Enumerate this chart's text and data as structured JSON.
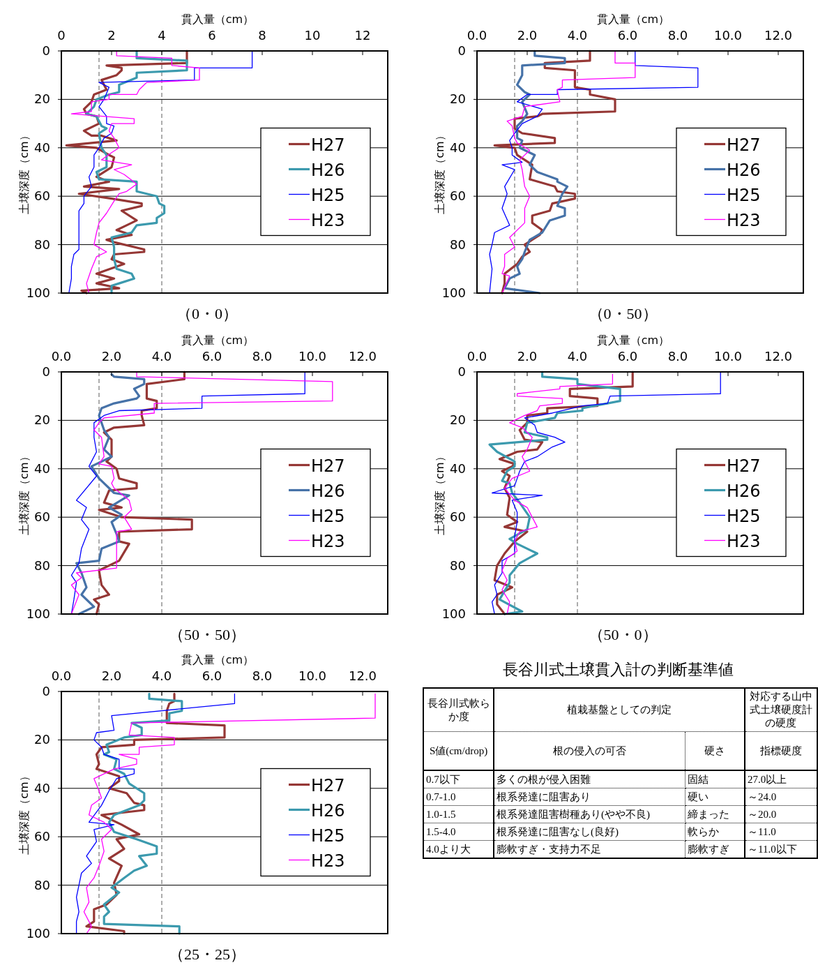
{
  "chart_data": [
    {
      "type": "line",
      "title": "（0・0）",
      "xlabel": "貫入量（cm）",
      "ylabel": "土壌深度（cm）",
      "xlim": [
        0,
        13
      ],
      "xticks": [
        0,
        2,
        4,
        6,
        8,
        10,
        12
      ],
      "ylim": [
        100,
        0
      ],
      "yticks": [
        0,
        20,
        40,
        60,
        80,
        100
      ],
      "grid": "y",
      "legend": "right",
      "ref_lines": [
        {
          "axis": "x",
          "value": 1.5,
          "color": "#808080",
          "line_style": "dashed"
        },
        {
          "axis": "x",
          "value": 4.0,
          "color": "#808080",
          "line_style": "dashed"
        }
      ],
      "series": [
        {
          "name": "H27",
          "color": "#953735",
          "x": [
            5.0,
            5.0,
            1.8,
            2.4,
            2.4,
            2.2,
            1.6,
            1.8,
            1.3,
            1.2,
            0.9,
            1.0,
            1.4,
            1.5,
            0.9,
            1.2,
            1.6,
            2.2,
            0.2,
            1.4,
            1.9,
            2.1,
            2.0,
            1.4,
            1.9,
            0.9,
            2.3,
            0.7,
            2.0,
            3.2,
            3.2,
            2.4,
            3.0,
            2.6,
            2.2,
            2.8,
            1.8,
            2.1,
            3.3,
            3.3,
            2.1,
            2.0,
            2.5,
            1.4,
            2.1,
            1.4,
            2.3,
            0.8,
            1.0
          ],
          "values": [
            0,
            5,
            6,
            7,
            8,
            10,
            12,
            16,
            18,
            21,
            24,
            26,
            27,
            30,
            33,
            35,
            35,
            37,
            39,
            40,
            43,
            44,
            48,
            52,
            54,
            56,
            57,
            59,
            61,
            63,
            64,
            66,
            70,
            72,
            74,
            76,
            78,
            79,
            82,
            83,
            84,
            86,
            88,
            92,
            94,
            96,
            98,
            99,
            100
          ]
        },
        {
          "name": "H26",
          "color": "#3c9aae",
          "x": [
            3.0,
            3.0,
            5.0,
            5.0,
            3.0,
            3.0,
            2.3,
            2.3,
            1.9,
            1.4,
            1.3,
            1.0,
            1.4,
            1.6,
            1.8,
            1.5,
            1.6,
            1.8,
            1.8,
            1.4,
            1.5,
            3.0,
            3.0,
            3.8,
            3.9,
            4.1,
            4.1,
            3.8,
            3.8,
            3.0,
            2.8,
            2.0,
            2.1,
            2.1,
            2.2,
            2.8,
            2.9,
            2.3,
            2.0,
            2.0
          ],
          "values": [
            0,
            3,
            4,
            8,
            9,
            11,
            14,
            17,
            18,
            20,
            23,
            26,
            27,
            31,
            32,
            34,
            40,
            43,
            48,
            50,
            53,
            54,
            58,
            60,
            63,
            64,
            67,
            69,
            71,
            72,
            75,
            77,
            81,
            86,
            90,
            92,
            94,
            96,
            97,
            100
          ]
        },
        {
          "name": "H25",
          "color": "#0000ff",
          "x": [
            7.6,
            7.6,
            5.3,
            5.3,
            1.5,
            1.9,
            1.7,
            1.5,
            1.8,
            1.8,
            2.1,
            2.0,
            1.7,
            1.5,
            1.3,
            1.3,
            1.1,
            1.2,
            0.9,
            0.9,
            0.7,
            0.7,
            0.7,
            0.7,
            0.5,
            0.4,
            0.4,
            0.3
          ],
          "values": [
            0,
            7,
            7,
            12,
            13,
            15,
            20,
            23,
            27,
            30,
            31,
            34,
            36,
            40,
            43,
            48,
            52,
            56,
            60,
            63,
            66,
            71,
            77,
            82,
            84,
            89,
            94,
            100
          ]
        },
        {
          "name": "H23",
          "color": "#ff00ff",
          "x": [
            2.2,
            2.2,
            4.4,
            4.4,
            5.5,
            5.5,
            3.4,
            3.3,
            3.1,
            3.0,
            1.9,
            1.9,
            1.2,
            1.2,
            0.4,
            2.9,
            2.9,
            2.0,
            1.9,
            2.1,
            2.3,
            2.0,
            1.6,
            2.8,
            2.1,
            2.5,
            3.0,
            2.6,
            2.3,
            2.1,
            1.8,
            1.5,
            1.4,
            1.3,
            1.8,
            1.4,
            1.2,
            1.1,
            1.0,
            1.1
          ],
          "values": [
            0,
            2,
            3,
            6,
            7,
            12,
            13,
            14,
            16,
            18,
            18,
            20,
            21,
            25,
            26,
            28,
            30,
            30,
            33,
            36,
            40,
            42,
            45,
            47,
            49,
            51,
            55,
            58,
            59,
            62,
            67,
            71,
            75,
            80,
            83,
            85,
            90,
            93,
            96,
            100
          ]
        }
      ]
    },
    {
      "type": "line",
      "title": "（0・50）",
      "xlabel": "貫入量（cm）",
      "ylabel": "土壌深度（cm）",
      "xlim": [
        0,
        13
      ],
      "xticks": [
        {
          "value": 0,
          "label": "0.0"
        },
        {
          "value": 2,
          "label": "2.0"
        },
        {
          "value": 4,
          "label": "4.0"
        },
        {
          "value": 6,
          "label": "6.0"
        },
        {
          "value": 8,
          "label": "8.0"
        },
        {
          "value": 10,
          "label": "10.0"
        },
        {
          "value": 12,
          "label": "12.0"
        }
      ],
      "ylim": [
        100,
        0
      ],
      "yticks": [
        0,
        20,
        40,
        60,
        80,
        100
      ],
      "grid": "y",
      "legend": "right",
      "ref_lines": [
        {
          "axis": "x",
          "value": 1.5,
          "color": "#808080",
          "line_style": "dashed"
        },
        {
          "axis": "x",
          "value": 4.0,
          "color": "#808080",
          "line_style": "dashed"
        }
      ],
      "series": [
        {
          "name": "H27",
          "color": "#953735",
          "x": [
            4.5,
            4.5,
            2.7,
            2.7,
            3.9,
            3.9,
            4.5,
            4.5,
            5.5,
            5.5,
            2.6,
            2.4,
            1.5,
            1.5,
            1.8,
            3.1,
            3.1,
            0.7,
            1.5,
            1.6,
            1.9,
            2.2,
            2.1,
            3.1,
            3.2,
            3.9,
            3.9,
            3.0,
            2.9,
            2.2,
            2.2,
            2.6,
            2.5,
            1.9,
            2.1,
            1.8,
            1.6,
            1.1,
            1.1,
            1.0
          ],
          "values": [
            0,
            4,
            5,
            7,
            8,
            15,
            16,
            18,
            20,
            25,
            26,
            27,
            28,
            32,
            34,
            36,
            38,
            39,
            40,
            43,
            45,
            47,
            53,
            56,
            58,
            59,
            61,
            63,
            66,
            68,
            71,
            74,
            76,
            80,
            83,
            85,
            88,
            92,
            96,
            100
          ]
        },
        {
          "name": "H26",
          "color": "#4672a8",
          "x": [
            2.3,
            2.3,
            3.5,
            3.5,
            1.8,
            1.8,
            1.6,
            1.9,
            2.1,
            1.8,
            2.0,
            1.8,
            1.6,
            1.6,
            1.8,
            1.7,
            2.3,
            2.1,
            2.4,
            3.2,
            3.2,
            3.6,
            3.4,
            3.2,
            3.5,
            3.5,
            2.9,
            2.6,
            2.1,
            1.9,
            1.8,
            1.6,
            1.7,
            1.3,
            1.1,
            2.5
          ],
          "values": [
            0,
            2,
            3,
            5,
            6,
            10,
            14,
            17,
            18,
            21,
            26,
            29,
            31,
            36,
            37,
            40,
            43,
            47,
            50,
            53,
            54,
            56,
            59,
            64,
            65,
            68,
            70,
            75,
            78,
            83,
            86,
            89,
            92,
            94,
            98,
            100
          ]
        },
        {
          "name": "H25",
          "color": "#0000ff",
          "x": [
            6.3,
            6.3,
            8.8,
            8.8,
            3.2,
            3.2,
            2.0,
            1.6,
            2.6,
            2.4,
            1.8,
            1.5,
            1.3,
            1.4,
            1.4,
            1.8,
            1.0,
            1.5,
            1.1,
            1.2,
            1.0,
            1.3,
            0.7,
            0.6,
            0.5,
            0.6,
            0.5
          ],
          "values": [
            0,
            6,
            7,
            15,
            16,
            18,
            18,
            21,
            24,
            27,
            30,
            34,
            37,
            40,
            43,
            46,
            47,
            49,
            56,
            59,
            65,
            72,
            75,
            80,
            84,
            90,
            100
          ]
        },
        {
          "name": "H23",
          "color": "#ff00ff",
          "x": [
            5.5,
            5.5,
            6.3,
            6.3,
            3.4,
            3.4,
            3.2,
            3.3,
            1.9,
            1.8,
            1.2,
            1.4,
            1.5,
            1.6,
            2.1,
            1.7,
            1.8,
            1.9,
            2.1,
            1.9,
            1.9,
            1.3,
            1.5,
            1.1,
            1.1,
            1.0,
            1.3,
            1.0
          ],
          "values": [
            0,
            5,
            5,
            11,
            12,
            15,
            16,
            21,
            23,
            27,
            29,
            31,
            36,
            38,
            41,
            45,
            49,
            56,
            60,
            65,
            71,
            77,
            81,
            84,
            89,
            92,
            93,
            100
          ]
        }
      ]
    },
    {
      "type": "line",
      "title": "（50・50）",
      "xlabel": "貫入量（cm）",
      "ylabel": "土壌深度（cm）",
      "xlim": [
        0,
        13
      ],
      "xticks": [
        {
          "value": 0,
          "label": "0.0"
        },
        {
          "value": 2,
          "label": "2.0"
        },
        {
          "value": 4,
          "label": "4.0"
        },
        {
          "value": 6,
          "label": "6.0"
        },
        {
          "value": 8,
          "label": "8.0"
        },
        {
          "value": 10,
          "label": "10.0"
        },
        {
          "value": 12,
          "label": "12.0"
        }
      ],
      "ylim": [
        100,
        0
      ],
      "yticks": [
        0,
        20,
        40,
        60,
        80,
        100
      ],
      "grid": "y",
      "legend": "right",
      "ref_lines": [
        {
          "axis": "x",
          "value": 1.5,
          "color": "#808080",
          "line_style": "dashed"
        },
        {
          "axis": "x",
          "value": 4.0,
          "color": "#808080",
          "line_style": "dashed"
        }
      ],
      "series": [
        {
          "name": "H27",
          "color": "#953735",
          "x": [
            4.9,
            4.9,
            3.4,
            3.4,
            3.8,
            3.8,
            3.2,
            3.2,
            3.3,
            2.1,
            1.7,
            2.0,
            2.0,
            1.8,
            2.2,
            2.3,
            3.0,
            3.0,
            1.9,
            1.7,
            2.4,
            1.5,
            2.4,
            5.2,
            5.2,
            2.3,
            2.3,
            2.7,
            2.3,
            1.5,
            1.6,
            1.9,
            1.3,
            1.5,
            1.4
          ],
          "values": [
            0,
            3,
            5,
            11,
            12,
            15,
            16,
            18,
            22,
            23,
            25,
            28,
            35,
            37,
            40,
            44,
            46,
            48,
            49,
            54,
            56,
            57,
            60,
            61,
            65,
            66,
            70,
            71,
            78,
            82,
            88,
            92,
            94,
            96,
            100
          ]
        },
        {
          "name": "H26",
          "color": "#4672a8",
          "x": [
            2.0,
            2.1,
            3.3,
            3.3,
            2.9,
            3.1,
            3.0,
            2.1,
            1.6,
            1.5,
            1.6,
            1.7,
            1.9,
            1.7,
            2.0,
            1.2,
            1.5,
            2.1,
            2.7,
            1.9,
            2.4,
            2.0,
            2.2,
            2.3,
            1.6,
            1.5,
            0.6,
            0.8,
            1.0,
            0.8,
            1.3,
            0.7
          ],
          "values": [
            1,
            2,
            3,
            5,
            7,
            10,
            11,
            13,
            15,
            18,
            21,
            24,
            27,
            32,
            35,
            39,
            44,
            50,
            51,
            56,
            59,
            62,
            67,
            70,
            73,
            78,
            79,
            83,
            89,
            92,
            97,
            100
          ]
        },
        {
          "name": "H25",
          "color": "#0000ff",
          "x": [
            9.7,
            9.7,
            5.6,
            5.6,
            2.3,
            1.7,
            1.3,
            1.3,
            1.4,
            1.1,
            1.4,
            0.6,
            1.0,
            0.8,
            1.1,
            0.8,
            0.7,
            0.4,
            0.6,
            0.5,
            0.4
          ],
          "values": [
            0,
            9,
            10,
            15,
            16,
            18,
            21,
            27,
            33,
            39,
            43,
            53,
            56,
            61,
            65,
            73,
            79,
            84,
            87,
            94,
            100
          ]
        },
        {
          "name": "H23",
          "color": "#ff00ff",
          "x": [
            3.0,
            3.0,
            10.8,
            10.8,
            3.7,
            3.7,
            1.7,
            1.5,
            1.3,
            1.6,
            1.7,
            1.5,
            2.0,
            2.1,
            2.0,
            2.1,
            2.7,
            2.8,
            2.5,
            2.8,
            2.2,
            2.2,
            0.6,
            0.8,
            0.4,
            0.7,
            0.4
          ],
          "values": [
            0,
            2,
            4,
            12,
            13,
            17,
            19,
            21,
            24,
            27,
            35,
            38,
            39,
            44,
            46,
            48,
            53,
            57,
            60,
            65,
            66,
            81,
            83,
            85,
            88,
            92,
            100
          ]
        }
      ]
    },
    {
      "type": "line",
      "title": "（50・0）",
      "xlabel": "貫入量（cm）",
      "ylabel": "土壌深度（cm）",
      "xlim": [
        0,
        13
      ],
      "xticks": [
        {
          "value": 0,
          "label": "0.0"
        },
        {
          "value": 2,
          "label": "2.0"
        },
        {
          "value": 4,
          "label": "4.0"
        },
        {
          "value": 6,
          "label": "6.0"
        },
        {
          "value": 8,
          "label": "8.0"
        },
        {
          "value": 10,
          "label": "10.0"
        },
        {
          "value": 12,
          "label": "12.0"
        }
      ],
      "ylim": [
        100,
        0
      ],
      "yticks": [
        0,
        20,
        40,
        60,
        80,
        100
      ],
      "grid": "y",
      "legend": "right",
      "ref_lines": [
        {
          "axis": "x",
          "value": 1.5,
          "color": "#808080",
          "line_style": "dashed"
        },
        {
          "axis": "x",
          "value": 4.0,
          "color": "#808080",
          "line_style": "dashed"
        }
      ],
      "series": [
        {
          "name": "H27",
          "color": "#953735",
          "x": [
            6.2,
            6.2,
            3.7,
            3.7,
            4.8,
            4.8,
            2.8,
            2.8,
            2.0,
            2.0,
            1.7,
            1.9,
            2.6,
            2.4,
            1.6,
            0.9,
            1.5,
            1.4,
            1.0,
            1.3,
            1.1,
            1.3,
            1.2,
            1.6,
            1.1,
            2.0,
            1.5,
            1.1,
            0.8,
            0.7,
            1.4,
            0.8,
            0.8,
            1.1
          ],
          "values": [
            0,
            6,
            7,
            10,
            11,
            14,
            15,
            17,
            18,
            21,
            24,
            28,
            29,
            32,
            33,
            36,
            38,
            39,
            41,
            43,
            48,
            52,
            59,
            62,
            64,
            66,
            70,
            75,
            80,
            86,
            89,
            92,
            96,
            100
          ]
        },
        {
          "name": "H26",
          "color": "#3c9aae",
          "x": [
            2.6,
            2.6,
            4.0,
            4.0,
            5.7,
            5.7,
            4.2,
            4.2,
            3.2,
            3.1,
            2.0,
            1.9,
            2.8,
            2.8,
            0.5,
            0.8,
            1.5,
            1.5,
            1.2,
            1.0,
            1.3,
            1.4,
            1.7,
            2.1,
            2.0,
            1.3,
            1.6,
            2.4,
            1.7,
            1.3,
            1.3,
            0.9,
            1.8,
            1.1
          ],
          "values": [
            0,
            2,
            3,
            5,
            7,
            12,
            15,
            16,
            17,
            19,
            21,
            25,
            27,
            28,
            30,
            33,
            37,
            39,
            41,
            45,
            46,
            50,
            54,
            60,
            65,
            69,
            71,
            75,
            79,
            84,
            87,
            94,
            99,
            100
          ]
        },
        {
          "name": "H25",
          "color": "#0000ff",
          "x": [
            9.7,
            9.7,
            5.3,
            5.2,
            4.2,
            3.0,
            1.9,
            2.3,
            2.4,
            3.1,
            3.5,
            3.0,
            2.4,
            1.9,
            1.7,
            1.5,
            0.6,
            2.6,
            1.4,
            1.6,
            1.6,
            1.5,
            1.5,
            1.0,
            1.0,
            0.7,
            0.8,
            0.6,
            0.7
          ],
          "values": [
            0,
            9,
            10,
            13,
            14,
            17,
            19,
            22,
            25,
            27,
            29,
            31,
            35,
            37,
            41,
            47,
            50,
            51,
            53,
            58,
            62,
            68,
            75,
            78,
            83,
            88,
            92,
            95,
            100
          ]
        },
        {
          "name": "H23",
          "color": "#ff00ff",
          "x": [
            5.4,
            5.4,
            3.3,
            3.3,
            1.6,
            1.6,
            3.4,
            3.4,
            2.5,
            2.4,
            1.9,
            1.3,
            1.8,
            2.2,
            2.0,
            1.8,
            2.1,
            1.4,
            1.1,
            1.5,
            2.0,
            2.4,
            1.7,
            1.5,
            1.6,
            1.2,
            1.0,
            1.2,
            1.0,
            1.3,
            1.2
          ],
          "values": [
            1,
            5,
            6,
            7,
            9,
            10,
            11,
            13,
            14,
            16,
            18,
            21,
            23,
            27,
            32,
            35,
            41,
            44,
            48,
            53,
            56,
            64,
            66,
            70,
            74,
            77,
            82,
            86,
            90,
            95,
            100
          ]
        }
      ]
    },
    {
      "type": "line",
      "title": "（25・25）",
      "xlabel": "貫入量（cm）",
      "ylabel": "土壌深度（cm）",
      "xlim": [
        0,
        13
      ],
      "xticks": [
        {
          "value": 0,
          "label": "0.0"
        },
        {
          "value": 2,
          "label": "2.0"
        },
        {
          "value": 4,
          "label": "4.0"
        },
        {
          "value": 6,
          "label": "6.0"
        },
        {
          "value": 8,
          "label": "8.0"
        },
        {
          "value": 10,
          "label": "10.0"
        },
        {
          "value": 12,
          "label": "12.0"
        }
      ],
      "ylim": [
        100,
        0
      ],
      "yticks": [
        0,
        20,
        40,
        60,
        80,
        100
      ],
      "grid": "y",
      "legend": "right",
      "ref_lines": [
        {
          "axis": "x",
          "value": 1.5,
          "color": "#808080",
          "line_style": "dashed"
        },
        {
          "axis": "x",
          "value": 4.0,
          "color": "#808080",
          "line_style": "dashed"
        }
      ],
      "series": [
        {
          "name": "H27",
          "color": "#953735",
          "x": [
            4.5,
            4.5,
            4.3,
            4.2,
            4.2,
            6.5,
            6.5,
            2.9,
            2.9,
            1.6,
            1.4,
            1.5,
            1.4,
            2.3,
            2.3,
            1.9,
            2.6,
            2.9,
            3.3,
            3.3,
            1.6,
            2.4,
            3.1,
            2.2,
            2.5,
            1.9,
            2.4,
            2.1,
            2.2,
            1.8,
            1.3,
            1.3,
            1.0,
            2.5,
            2.5
          ],
          "values": [
            1,
            4,
            5,
            8,
            13,
            14,
            19,
            20,
            22,
            23,
            26,
            30,
            32,
            35,
            37,
            40,
            42,
            46,
            47,
            49,
            51,
            55,
            59,
            61,
            65,
            69,
            72,
            79,
            84,
            88,
            90,
            95,
            97,
            99,
            100
          ]
        },
        {
          "name": "H26",
          "color": "#3c9aae",
          "x": [
            3.5,
            3.5,
            4.8,
            4.8,
            4.3,
            4.3,
            2.8,
            3.2,
            3.2,
            2.5,
            1.8,
            1.9,
            1.7,
            2.2,
            2.1,
            2.5,
            2.7,
            3.3,
            3.3,
            3.1,
            2.1,
            1.9,
            2.1,
            3.0,
            3.8,
            3.8,
            3.1,
            3.4,
            2.9,
            2.5,
            2.0,
            2.3,
            1.7,
            1.9,
            1.7,
            1.7,
            4.7,
            4.7
          ],
          "values": [
            1,
            3,
            4,
            8,
            9,
            12,
            13,
            15,
            18,
            19,
            22,
            25,
            26,
            28,
            32,
            34,
            38,
            42,
            45,
            47,
            51,
            54,
            58,
            61,
            64,
            67,
            68,
            72,
            74,
            77,
            81,
            83,
            88,
            91,
            93,
            96,
            97,
            100
          ]
        },
        {
          "name": "H25",
          "color": "#0000ff",
          "x": [
            6.9,
            6.9,
            2.0,
            2.1,
            1.4,
            1.3,
            1.6,
            1.7,
            2.3,
            2.3,
            2.9,
            2.9,
            2.2,
            1.9,
            1.6,
            1.1,
            2.1,
            1.3,
            1.4,
            1.0,
            1.2,
            0.8,
            0.7,
            0.6,
            0.7,
            0.6,
            0.6
          ],
          "values": [
            1,
            5,
            10,
            16,
            17,
            20,
            23,
            26,
            28,
            32,
            32,
            34,
            36,
            41,
            47,
            54,
            55,
            57,
            62,
            68,
            71,
            75,
            80,
            85,
            91,
            95,
            100
          ]
        },
        {
          "name": "H23",
          "color": "#ff00ff",
          "x": [
            12.5,
            12.5,
            2.8,
            2.7,
            4.5,
            4.5,
            3.1,
            3.1,
            2.3,
            3.0,
            3.0,
            2.1,
            1.3,
            1.5,
            1.6,
            1.2,
            1.1,
            1.7,
            2.0,
            1.6,
            1.7,
            1.5,
            1.3,
            1.0,
            1.1,
            0.9,
            1.2,
            1.0
          ],
          "values": [
            1,
            11,
            13,
            18,
            19,
            22,
            23,
            26,
            26,
            28,
            30,
            32,
            36,
            41,
            44,
            47,
            51,
            54,
            57,
            61,
            66,
            72,
            77,
            81,
            87,
            91,
            97,
            100
          ]
        }
      ]
    },
    {
      "type": "other",
      "title": "長谷川式土壌貫入計の判断基準値",
      "annotations": [
        "長谷川式軟らか度",
        "植栽基盤としての判定",
        "対応する山中式土壌硬度計の硬度",
        "S値(cm/drop)",
        "根の侵入の可否",
        "硬さ",
        "指標硬度",
        "0.7以下",
        "多くの根が侵入困難",
        "固結",
        "27.0以上",
        "0.7-1.0",
        "根系発達に阻害あり",
        "硬い",
        "～24.0",
        "1.0-1.5",
        "根系発達阻害樹種あり(やや不良)",
        "締まった",
        "～20.0",
        "1.5-4.0",
        "根系発達に阻害なし(良好)",
        "軟らか",
        "～11.0",
        "4.0より大",
        "膨軟すぎ・支持力不足",
        "膨軟すぎ",
        "～11.0以下"
      ]
    }
  ]
}
